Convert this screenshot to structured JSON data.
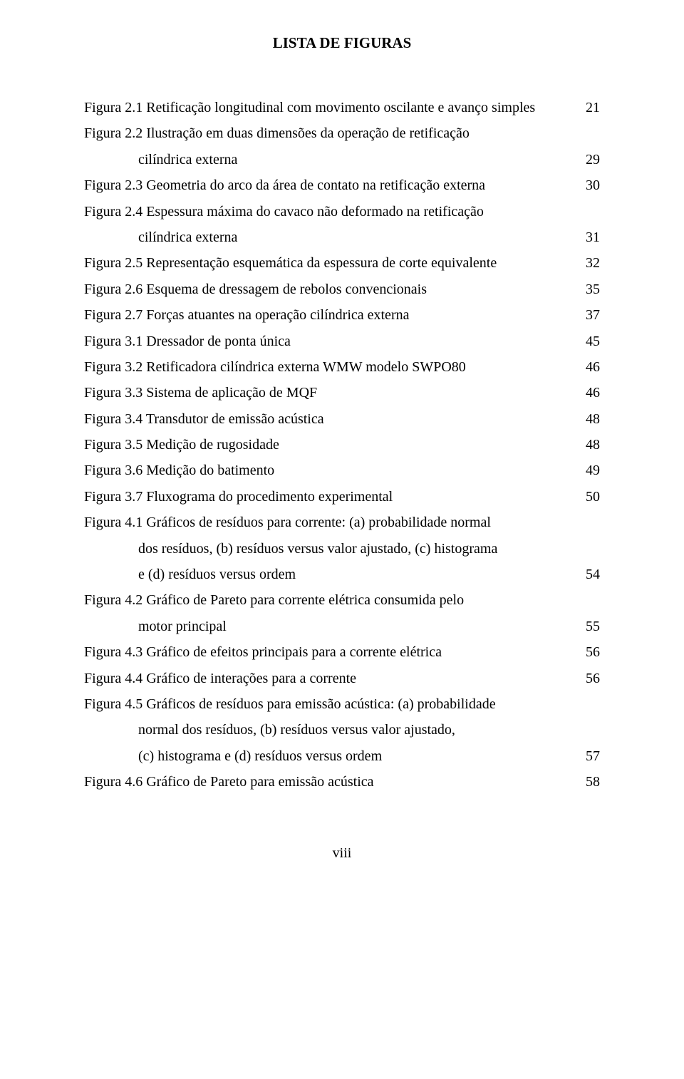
{
  "title": "LISTA DE FIGURAS",
  "footer": "viii",
  "entries": [
    {
      "lines": [
        "Figura 2.1 Retificação longitudinal com movimento oscilante e avanço simples"
      ],
      "page": "21",
      "indentFrom": null
    },
    {
      "lines": [
        "Figura 2.2 Ilustração em duas dimensões da operação de retificação",
        "cilíndrica externa"
      ],
      "page": "29",
      "indentFrom": 1
    },
    {
      "lines": [
        "Figura 2.3 Geometria do arco da área de contato na retificação externa"
      ],
      "page": "30",
      "indentFrom": null
    },
    {
      "lines": [
        "Figura 2.4 Espessura máxima do cavaco não deformado na retificação",
        "cilíndrica externa"
      ],
      "page": "31",
      "indentFrom": 1
    },
    {
      "lines": [
        "Figura 2.5 Representação esquemática da espessura de corte equivalente"
      ],
      "page": "32",
      "indentFrom": null
    },
    {
      "lines": [
        "Figura 2.6 Esquema de dressagem de rebolos convencionais"
      ],
      "page": "35",
      "indentFrom": null
    },
    {
      "lines": [
        "Figura 2.7 Forças atuantes na operação cilíndrica externa"
      ],
      "page": "37",
      "indentFrom": null
    },
    {
      "lines": [
        "Figura 3.1 Dressador de ponta única"
      ],
      "page": "45",
      "indentFrom": null
    },
    {
      "lines": [
        "Figura 3.2 Retificadora cilíndrica externa WMW modelo SWPO80"
      ],
      "page": "46",
      "indentFrom": null
    },
    {
      "lines": [
        "Figura 3.3 Sistema de aplicação de MQF"
      ],
      "page": "46",
      "indentFrom": null
    },
    {
      "lines": [
        "Figura 3.4 Transdutor de emissão acústica"
      ],
      "page": "48",
      "indentFrom": null
    },
    {
      "lines": [
        "Figura 3.5 Medição de rugosidade"
      ],
      "page": "48",
      "indentFrom": null
    },
    {
      "lines": [
        "Figura 3.6 Medição do batimento"
      ],
      "page": "49",
      "indentFrom": null
    },
    {
      "lines": [
        "Figura 3.7 Fluxograma do procedimento experimental"
      ],
      "page": "50",
      "indentFrom": null
    },
    {
      "lines": [
        "Figura 4.1 Gráficos de resíduos para corrente: (a) probabilidade normal",
        "dos resíduos, (b) resíduos versus valor ajustado, (c) histograma",
        "e (d) resíduos versus ordem"
      ],
      "page": "54",
      "indentFrom": 1
    },
    {
      "lines": [
        "Figura 4.2 Gráfico de Pareto para corrente elétrica consumida pelo",
        "motor principal"
      ],
      "page": "55",
      "indentFrom": 1
    },
    {
      "lines": [
        "Figura 4.3 Gráfico de efeitos principais para a corrente elétrica"
      ],
      "page": "56",
      "indentFrom": null
    },
    {
      "lines": [
        "Figura 4.4 Gráfico de interações para a corrente"
      ],
      "page": "56",
      "indentFrom": null
    },
    {
      "lines": [
        "Figura 4.5 Gráficos de resíduos para emissão acústica: (a) probabilidade",
        "normal dos resíduos, (b) resíduos versus valor ajustado,",
        "(c) histograma e (d) resíduos versus ordem"
      ],
      "page": "57",
      "indentFrom": 1
    },
    {
      "lines": [
        "Figura 4.6 Gráfico de Pareto para emissão acústica"
      ],
      "page": "58",
      "indentFrom": null
    }
  ]
}
